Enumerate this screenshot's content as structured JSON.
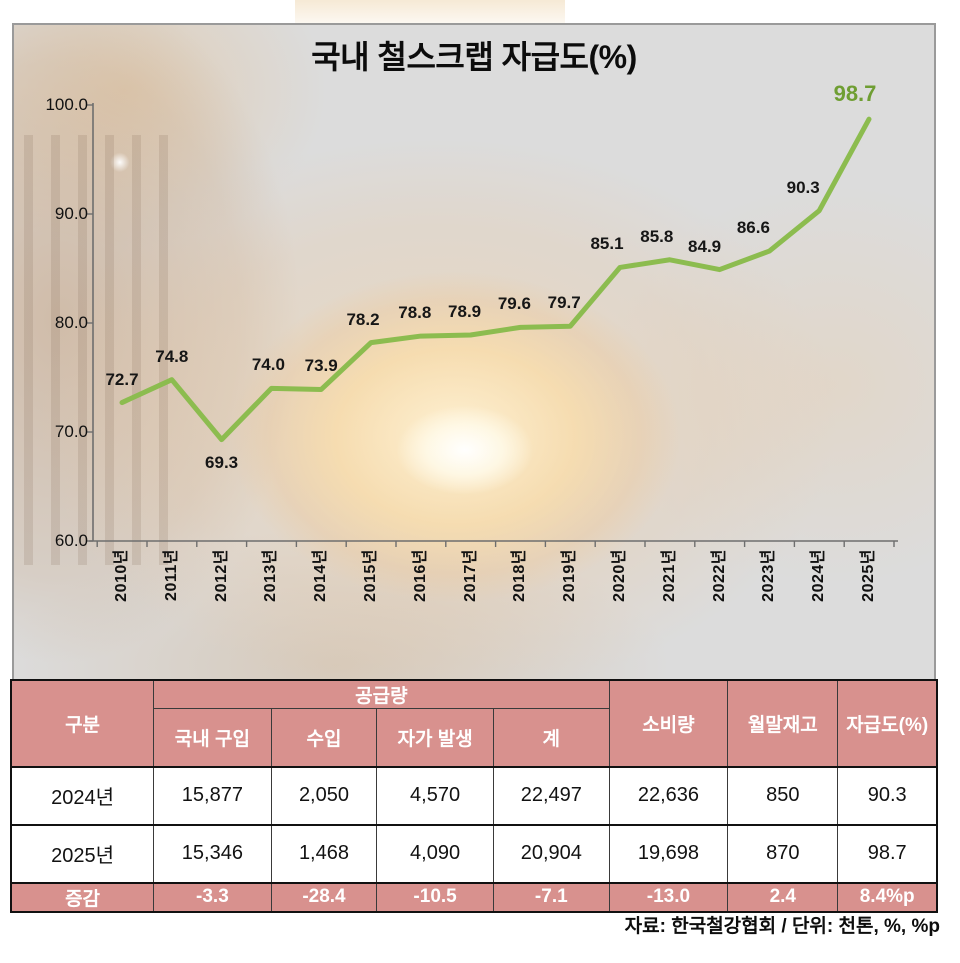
{
  "title": "국내 철스크랩 자급도(%)",
  "chart_data": {
    "type": "line",
    "categories": [
      "2010년",
      "2011년",
      "2012년",
      "2013년",
      "2014년",
      "2015년",
      "2016년",
      "2017년",
      "2018년",
      "2019년",
      "2020년",
      "2021년",
      "2022년",
      "2023년",
      "2024년",
      "2025년"
    ],
    "values": [
      72.7,
      74.8,
      69.3,
      74.0,
      73.9,
      78.2,
      78.8,
      78.9,
      79.6,
      79.7,
      85.1,
      85.8,
      84.9,
      86.6,
      90.3,
      98.7
    ],
    "point_labels": [
      "72.7",
      "74.8",
      "69.3",
      "74.0",
      "73.9",
      "78.2",
      "78.8",
      "78.9",
      "79.6",
      "79.7",
      "85.1",
      "85.8",
      "84.9",
      "86.6",
      "90.3",
      "98.7"
    ],
    "ylim": [
      60,
      100
    ],
    "yticks": [
      "100.0",
      "90.0",
      "80.0",
      "70.0",
      "60.0"
    ],
    "ytick_values": [
      100,
      90,
      80,
      70,
      60
    ],
    "grid": "off",
    "legend": "none",
    "line_color": "#8cbc4f",
    "highlight_label": "98.7",
    "highlight_color": "#6f9e33"
  },
  "table": {
    "header": {
      "gubun": "구분",
      "supply": "공급량",
      "supply_cols": [
        "국내 구입",
        "수입",
        "자가 발생",
        "계"
      ],
      "consumption": "소비량",
      "inventory": "월말재고",
      "self_sufficiency": "자급도(%)"
    },
    "rows": [
      {
        "label": "2024년",
        "values": [
          "15,877",
          "2,050",
          "4,570",
          "22,497",
          "22,636",
          "850",
          "90.3"
        ]
      },
      {
        "label": "2025년",
        "values": [
          "15,346",
          "1,468",
          "4,090",
          "20,904",
          "19,698",
          "870",
          "98.7"
        ]
      },
      {
        "label": "증감",
        "values": [
          "-3.3",
          "-28.4",
          "-10.5",
          "-7.1",
          "-13.0",
          "2.4",
          "8.4%p"
        ]
      }
    ]
  },
  "footer": "자료: 한국철강협회 / 단위: 천톤, %, %p",
  "colors": {
    "line": "#8cbc4f",
    "highlight_text": "#6f9e33",
    "header_bg": "#d8918e",
    "axis": "#6e6e6e",
    "text": "#111111"
  }
}
